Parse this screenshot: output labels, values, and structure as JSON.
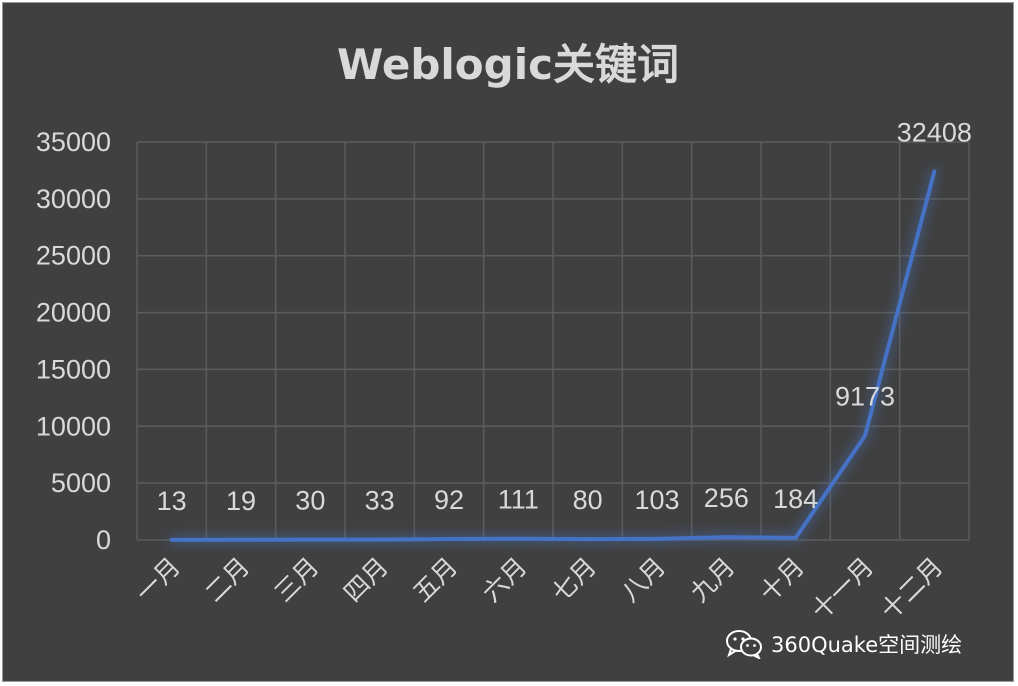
{
  "chart_data": {
    "type": "line",
    "title": "Weblogic关键词",
    "categories": [
      "一月",
      "二月",
      "三月",
      "四月",
      "五月",
      "六月",
      "七月",
      "八月",
      "九月",
      "十月",
      "十一月",
      "十二月"
    ],
    "series": [
      {
        "values": [
          13,
          19,
          30,
          33,
          92,
          111,
          80,
          103,
          256,
          184,
          9173,
          32408
        ]
      }
    ],
    "data_labels": [
      "13",
      "19",
      "30",
      "33",
      "92",
      "111",
      "80",
      "103",
      "256",
      "184",
      "9173",
      "32408"
    ],
    "y_ticks": [
      0,
      5000,
      10000,
      15000,
      20000,
      25000,
      30000,
      35000
    ],
    "ylim": [
      0,
      35000
    ],
    "grid": true,
    "legend": "none",
    "colors": {
      "background": "#404040",
      "grid": "#5c5c5c",
      "line": "#4472c4",
      "text": "#d9d9d9"
    }
  },
  "watermark": {
    "icon": "wechat-icon",
    "text": "360Quake空间测绘"
  }
}
